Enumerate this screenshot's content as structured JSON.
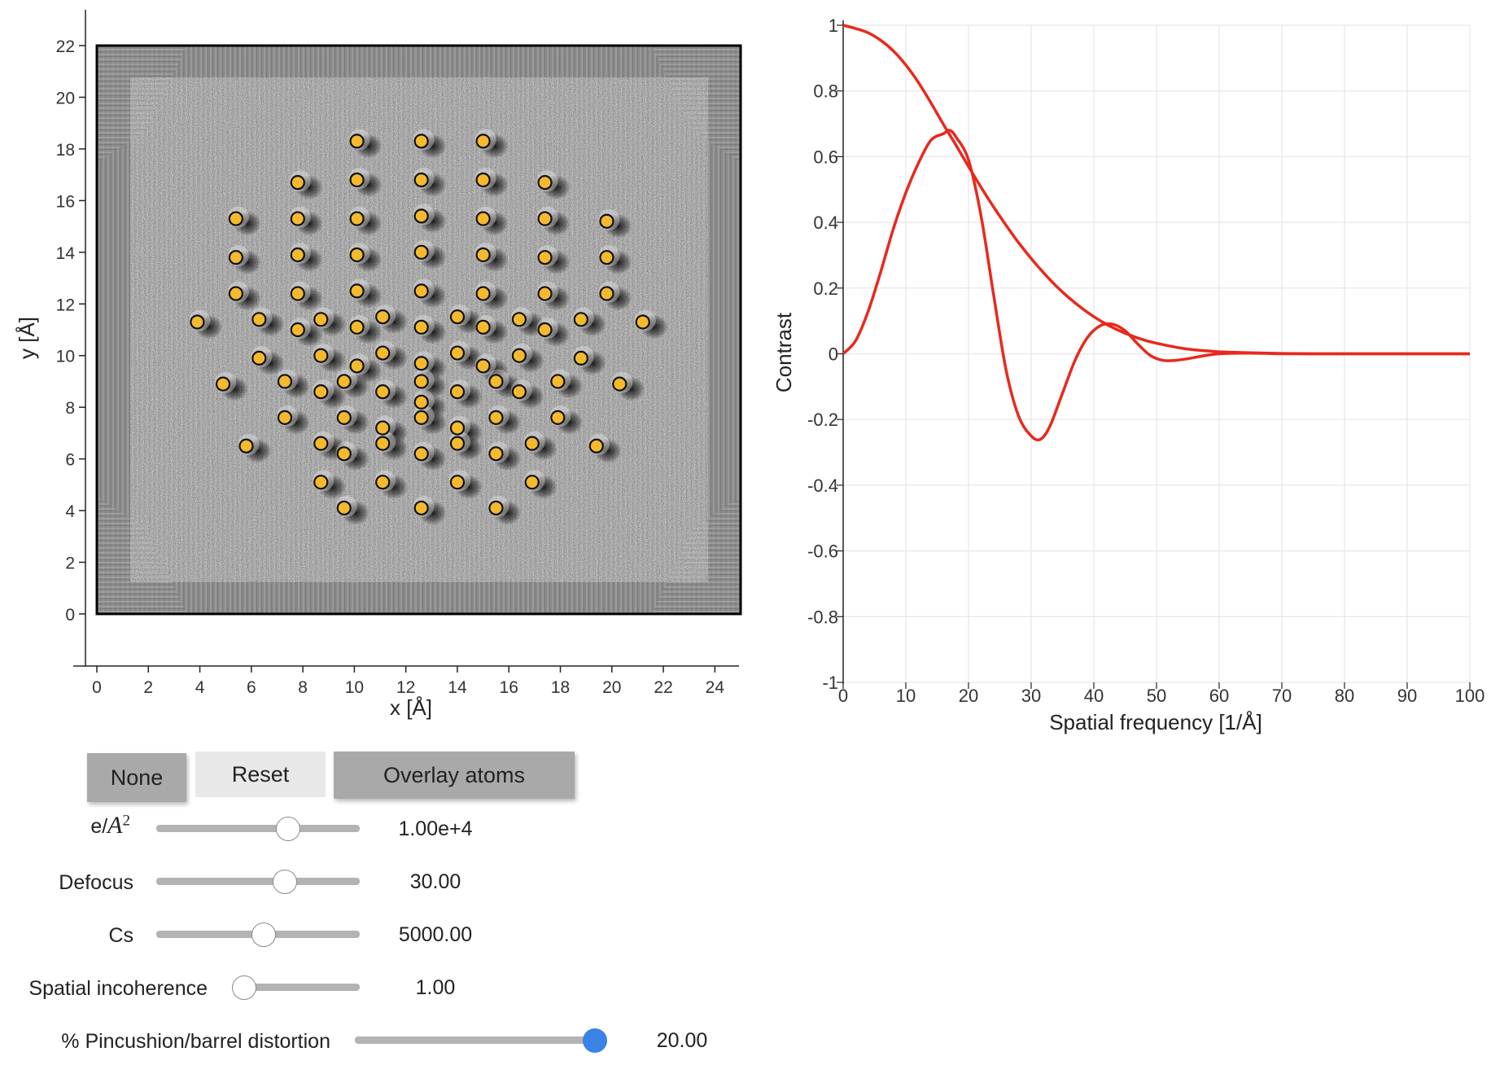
{
  "left_plot": {
    "x_axis_label": "x [Å]",
    "y_axis_label": "y [Å]",
    "x_ticks": [
      "0",
      "2",
      "4",
      "6",
      "8",
      "10",
      "12",
      "14",
      "16",
      "18",
      "20",
      "22",
      "24"
    ],
    "y_ticks": [
      "0",
      "2",
      "4",
      "6",
      "8",
      "10",
      "12",
      "14",
      "16",
      "18",
      "20",
      "22"
    ],
    "atom_fill_color": "#f5b92e",
    "atom_stroke_color": "#111111"
  },
  "right_plot": {
    "x_axis_label": "Spatial frequency [1/Å]",
    "y_axis_label": "Contrast",
    "x_ticks": [
      "0",
      "10",
      "20",
      "30",
      "40",
      "50",
      "60",
      "70",
      "80",
      "90",
      "100"
    ],
    "y_ticks": [
      "1",
      "0.8",
      "0.6",
      "0.4",
      "0.2",
      "0",
      "-0.2",
      "-0.4",
      "-0.6",
      "-0.8",
      "-1"
    ],
    "line_color": "#e8291c"
  },
  "chart_data": [
    {
      "type": "scatter",
      "title": "",
      "xlabel": "x [Å]",
      "ylabel": "y [Å]",
      "xlim": [
        0,
        25
      ],
      "ylim": [
        0,
        22
      ],
      "series": [
        {
          "points": [
            [
              10.1,
              18.3
            ],
            [
              12.6,
              18.3
            ],
            [
              15.0,
              18.3
            ],
            [
              7.8,
              16.7
            ],
            [
              10.1,
              16.8
            ],
            [
              12.6,
              16.8
            ],
            [
              15.0,
              16.8
            ],
            [
              17.4,
              16.7
            ],
            [
              5.4,
              15.3
            ],
            [
              7.8,
              15.3
            ],
            [
              10.1,
              15.3
            ],
            [
              12.6,
              15.4
            ],
            [
              15.0,
              15.3
            ],
            [
              17.4,
              15.3
            ],
            [
              19.8,
              15.2
            ],
            [
              5.4,
              13.8
            ],
            [
              7.8,
              13.9
            ],
            [
              10.1,
              13.9
            ],
            [
              12.6,
              14.0
            ],
            [
              15.0,
              13.9
            ],
            [
              17.4,
              13.8
            ],
            [
              19.8,
              13.8
            ],
            [
              5.4,
              12.4
            ],
            [
              7.8,
              12.4
            ],
            [
              10.1,
              12.5
            ],
            [
              12.6,
              12.5
            ],
            [
              15.0,
              12.4
            ],
            [
              17.4,
              12.4
            ],
            [
              19.8,
              12.4
            ],
            [
              3.9,
              11.3
            ],
            [
              6.3,
              11.4
            ],
            [
              8.7,
              11.4
            ],
            [
              11.1,
              11.5
            ],
            [
              14.0,
              11.5
            ],
            [
              16.4,
              11.4
            ],
            [
              18.8,
              11.4
            ],
            [
              21.2,
              11.3
            ],
            [
              7.8,
              11.0
            ],
            [
              10.1,
              11.1
            ],
            [
              12.6,
              11.1
            ],
            [
              15.0,
              11.1
            ],
            [
              17.4,
              11.0
            ],
            [
              6.3,
              9.9
            ],
            [
              8.7,
              10.0
            ],
            [
              11.1,
              10.1
            ],
            [
              14.0,
              10.1
            ],
            [
              16.4,
              10.0
            ],
            [
              18.8,
              9.9
            ],
            [
              10.1,
              9.6
            ],
            [
              12.6,
              9.7
            ],
            [
              15.0,
              9.6
            ],
            [
              4.9,
              8.9
            ],
            [
              7.3,
              9.0
            ],
            [
              9.6,
              9.0
            ],
            [
              12.6,
              9.0
            ],
            [
              15.5,
              9.0
            ],
            [
              17.9,
              9.0
            ],
            [
              20.3,
              8.9
            ],
            [
              8.7,
              8.6
            ],
            [
              11.1,
              8.6
            ],
            [
              14.0,
              8.6
            ],
            [
              16.4,
              8.6
            ],
            [
              12.6,
              8.2
            ],
            [
              7.3,
              7.6
            ],
            [
              9.6,
              7.6
            ],
            [
              12.6,
              7.6
            ],
            [
              15.5,
              7.6
            ],
            [
              17.9,
              7.6
            ],
            [
              11.1,
              7.2
            ],
            [
              14.0,
              7.2
            ],
            [
              5.8,
              6.5
            ],
            [
              8.7,
              6.6
            ],
            [
              11.1,
              6.6
            ],
            [
              14.0,
              6.6
            ],
            [
              16.9,
              6.6
            ],
            [
              19.4,
              6.5
            ],
            [
              9.6,
              6.2
            ],
            [
              12.6,
              6.2
            ],
            [
              15.5,
              6.2
            ],
            [
              8.7,
              5.1
            ],
            [
              11.1,
              5.1
            ],
            [
              14.0,
              5.1
            ],
            [
              16.9,
              5.1
            ],
            [
              9.6,
              4.1
            ],
            [
              12.6,
              4.1
            ],
            [
              15.5,
              4.1
            ]
          ]
        }
      ]
    },
    {
      "type": "line",
      "title": "",
      "xlabel": "Spatial frequency [1/Å]",
      "ylabel": "Contrast",
      "xlim": [
        0,
        100
      ],
      "ylim": [
        -1,
        1
      ],
      "grid": true,
      "series": [
        {
          "x": [
            0,
            2,
            4,
            6,
            8,
            10,
            12,
            14,
            16,
            18,
            20,
            22,
            24,
            26,
            28,
            30,
            32,
            34,
            36,
            38,
            40,
            42,
            44,
            46,
            48,
            50,
            52,
            54,
            56,
            58,
            60,
            65,
            70,
            75,
            80,
            85,
            90,
            95,
            100
          ],
          "y": [
            1.0,
            0.99,
            0.977,
            0.954,
            0.922,
            0.879,
            0.826,
            0.764,
            0.698,
            0.635,
            0.57,
            0.507,
            0.447,
            0.391,
            0.338,
            0.29,
            0.246,
            0.206,
            0.171,
            0.14,
            0.113,
            0.09,
            0.071,
            0.055,
            0.042,
            0.032,
            0.024,
            0.017,
            0.012,
            0.009,
            0.006,
            0.003,
            0.001,
            0.0,
            0.0,
            0.0,
            0.0,
            0.0,
            0.0
          ]
        },
        {
          "x": [
            0,
            2,
            4,
            6,
            8,
            10,
            12,
            14,
            16,
            17,
            18,
            20,
            22,
            24,
            26,
            28,
            30,
            31.5,
            33,
            35,
            37,
            39,
            41,
            43,
            45,
            47,
            49,
            51,
            53,
            55,
            57,
            60,
            65,
            70,
            80,
            90,
            100
          ],
          "y": [
            0.0,
            0.04,
            0.13,
            0.25,
            0.38,
            0.49,
            0.58,
            0.65,
            0.67,
            0.68,
            0.66,
            0.59,
            0.42,
            0.18,
            -0.05,
            -0.19,
            -0.25,
            -0.26,
            -0.22,
            -0.12,
            -0.02,
            0.05,
            0.085,
            0.09,
            0.07,
            0.03,
            -0.005,
            -0.02,
            -0.02,
            -0.015,
            -0.008,
            0.0,
            0.002,
            0.0,
            0.0,
            0.0,
            0.0
          ]
        }
      ]
    }
  ],
  "controls": {
    "buttons": {
      "none_label": "None",
      "reset_label": "Reset",
      "overlay_label": "Overlay atoms"
    },
    "sliders": [
      {
        "label_prefix": "e/",
        "label_base": "A",
        "label_sup": "2",
        "value_text": "1.00e+4",
        "fraction": 0.67
      },
      {
        "label": "Defocus",
        "value_text": "30.00",
        "fraction": 0.65
      },
      {
        "label": "Cs",
        "value_text": "5000.00",
        "fraction": 0.53
      },
      {
        "label": "Spatial incoherence",
        "value_text": "1.00",
        "fraction": 0.0
      },
      {
        "label": "% Pincushion/barrel distortion",
        "value_text": "20.00",
        "fraction": 1.0
      }
    ]
  }
}
